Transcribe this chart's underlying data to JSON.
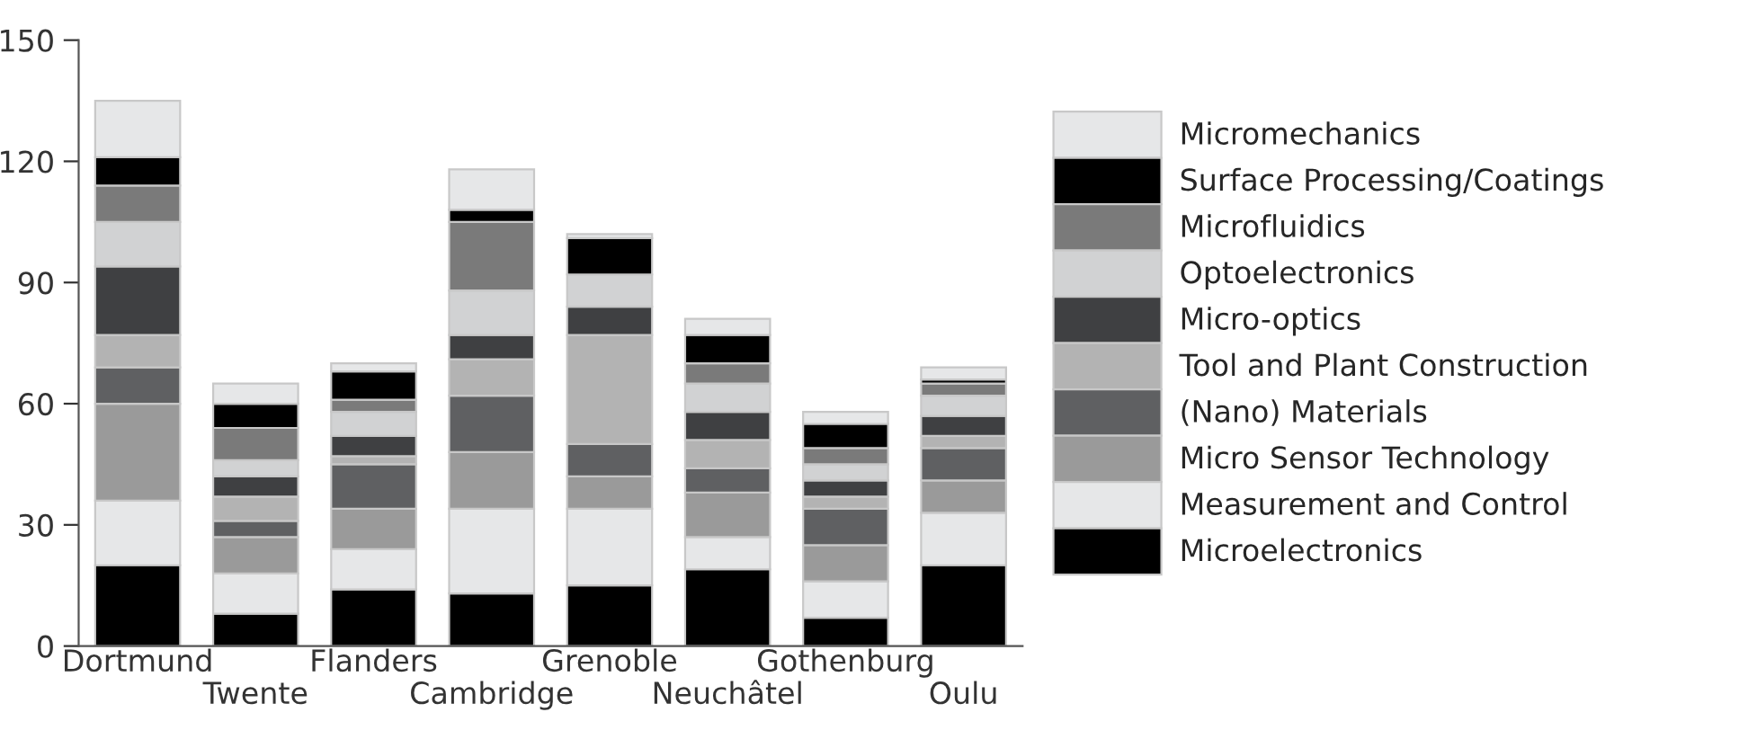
{
  "chart_data": {
    "type": "bar",
    "stacked": true,
    "categories": [
      "Dortmund",
      "Twente",
      "Flanders",
      "Cambridge",
      "Grenoble",
      "Neuchâtel",
      "Gothenburg",
      "Oulu"
    ],
    "series": [
      {
        "name": "Microelectronics",
        "color": "#000000",
        "values": [
          20,
          8,
          14,
          13,
          15,
          19,
          7,
          20
        ]
      },
      {
        "name": "Measurement and Control",
        "color": "#e6e7e8",
        "values": [
          16,
          10,
          10,
          21,
          19,
          8,
          9,
          13
        ]
      },
      {
        "name": "Micro Sensor Technology",
        "color": "#9a9a9a",
        "values": [
          24,
          9,
          10,
          14,
          8,
          11,
          9,
          8
        ]
      },
      {
        "name": "(Nano) Materials",
        "color": "#5f6062",
        "values": [
          9,
          4,
          11,
          14,
          8,
          6,
          9,
          8
        ]
      },
      {
        "name": "Tool and Plant Construction",
        "color": "#b3b3b3",
        "values": [
          8,
          6,
          2,
          9,
          27,
          7,
          3,
          3
        ]
      },
      {
        "name": "Micro-optics",
        "color": "#3f4042",
        "values": [
          17,
          5,
          5,
          6,
          7,
          7,
          4,
          5
        ]
      },
      {
        "name": "Optoelectronics",
        "color": "#d1d2d3",
        "values": [
          11,
          4,
          6,
          11,
          8,
          7,
          4,
          5
        ]
      },
      {
        "name": "Microfluidics",
        "color": "#7a7a7a",
        "values": [
          9,
          8,
          3,
          17,
          0,
          5,
          4,
          3
        ]
      },
      {
        "name": "Surface Processing/Coatings",
        "color": "#000000",
        "values": [
          7,
          6,
          7,
          3,
          9,
          7,
          6,
          1
        ]
      },
      {
        "name": "Micromechanics",
        "color": "#e6e7e8",
        "values": [
          14,
          5,
          2,
          10,
          1,
          4,
          3,
          3
        ]
      }
    ],
    "ylim": [
      0,
      150
    ],
    "yticks": [
      0,
      30,
      60,
      90,
      120,
      150
    ],
    "grid": false,
    "legend": "right"
  }
}
